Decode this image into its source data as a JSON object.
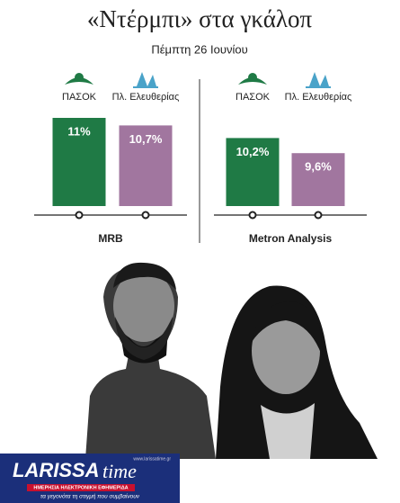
{
  "header": {
    "title": "«Ντέρμπι» στα γκάλοπ",
    "subtitle": "Πέμπτη 26 Ιουνίου"
  },
  "chart_data": [
    {
      "type": "bar",
      "title": "MRB",
      "categories": [
        "ΠΑΣΟΚ",
        "Πλ. Ελευθερίας"
      ],
      "values": [
        11,
        10.7
      ],
      "value_labels": [
        "11%",
        "10,7%"
      ],
      "colors": [
        "#1f7a45",
        "#a1769f"
      ],
      "ylim": [
        7.5,
        11.5
      ]
    },
    {
      "type": "bar",
      "title": "Metron Analysis",
      "categories": [
        "ΠΑΣΟΚ",
        "Πλ. Ελευθερίας"
      ],
      "values": [
        10.2,
        9.6
      ],
      "value_labels": [
        "10,2%",
        "9,6%"
      ],
      "colors": [
        "#1f7a45",
        "#a1769f"
      ],
      "ylim": [
        7.5,
        11.5
      ]
    }
  ],
  "logo": {
    "name": "LARISSA",
    "name2": "time",
    "tagline": "ΗΜΕΡΗΣΙΑ ΗΛΕΚΤΡΟΝΙΚΗ ΕΦΗΜΕΡΙΔΑ",
    "motto": "τα γεγονότα τη στιγμή που συμβαίνουν",
    "url": "www.larissatime.gr"
  }
}
